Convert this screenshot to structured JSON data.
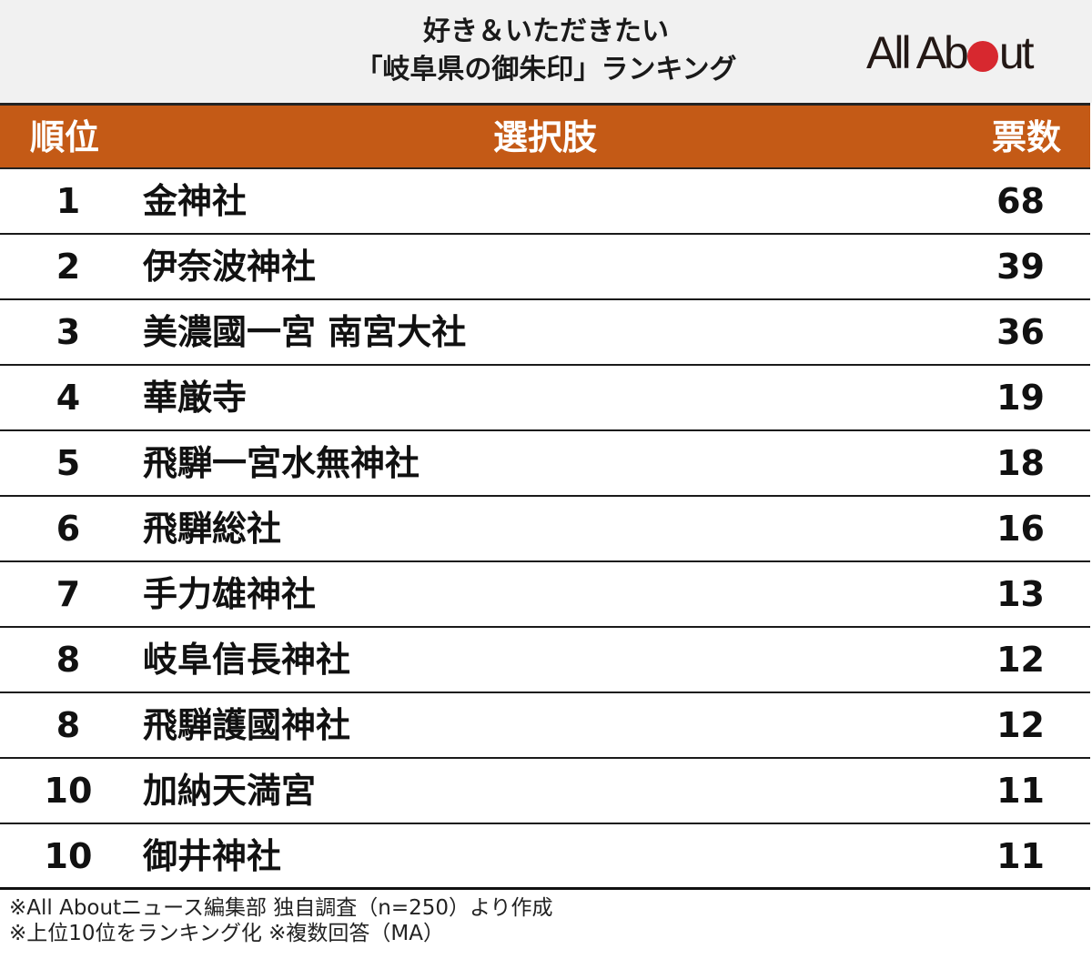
{
  "header": {
    "title_line1": "好き＆いただきたい",
    "title_line2": "「岐阜県の御朱印」ランキング",
    "logo": {
      "part1": "All Ab",
      "part2": "ut",
      "dot_color": "#d7282f"
    }
  },
  "table": {
    "columns": {
      "rank": "順位",
      "choice": "選択肢",
      "votes": "票数"
    },
    "header_color": "#c45a16",
    "rows": [
      {
        "rank": "1",
        "name": "金神社",
        "votes": "68"
      },
      {
        "rank": "2",
        "name": "伊奈波神社",
        "votes": "39"
      },
      {
        "rank": "3",
        "name": "美濃國一宮 南宮大社",
        "votes": "36"
      },
      {
        "rank": "4",
        "name": "華厳寺",
        "votes": "19"
      },
      {
        "rank": "5",
        "name": "飛騨一宮水無神社",
        "votes": "18"
      },
      {
        "rank": "6",
        "name": "飛騨総社",
        "votes": "16"
      },
      {
        "rank": "7",
        "name": "手力雄神社",
        "votes": "13"
      },
      {
        "rank": "8",
        "name": "岐阜信長神社",
        "votes": "12"
      },
      {
        "rank": "8",
        "name": "飛騨護國神社",
        "votes": "12"
      },
      {
        "rank": "10",
        "name": "加納天満宮",
        "votes": "11"
      },
      {
        "rank": "10",
        "name": "御井神社",
        "votes": "11"
      }
    ]
  },
  "footer": {
    "note1": "※All Aboutニュース編集部 独自調査（n=250）より作成",
    "note2": "※上位10位をランキング化 ※複数回答（MA）"
  },
  "chart_data": {
    "type": "table",
    "title": "好き＆いただきたい「岐阜県の御朱印」ランキング",
    "columns": [
      "順位",
      "選択肢",
      "票数"
    ],
    "categories": [
      "金神社",
      "伊奈波神社",
      "美濃國一宮 南宮大社",
      "華厳寺",
      "飛騨一宮水無神社",
      "飛騨総社",
      "手力雄神社",
      "岐阜信長神社",
      "飛騨護國神社",
      "加納天満宮",
      "御井神社"
    ],
    "ranks": [
      1,
      2,
      3,
      4,
      5,
      6,
      7,
      8,
      8,
      10,
      10
    ],
    "values": [
      68,
      39,
      36,
      19,
      18,
      16,
      13,
      12,
      12,
      11,
      11
    ],
    "notes": [
      "※All Aboutニュース編集部 独自調査（n=250）より作成",
      "※上位10位をランキング化 ※複数回答（MA）"
    ]
  }
}
